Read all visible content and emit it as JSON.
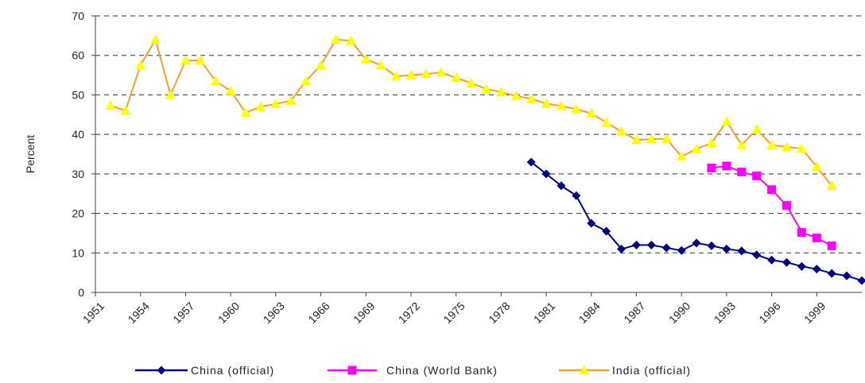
{
  "chart_data": {
    "type": "line",
    "title": "",
    "xlabel": "",
    "ylabel": "Percent",
    "ylim": [
      0,
      70
    ],
    "xlim": [
      1951,
      2002
    ],
    "y_ticks": [
      "0",
      "10",
      "20",
      "30",
      "40",
      "50",
      "60",
      "70"
    ],
    "x_ticks": [
      "1951",
      "1954",
      "1957",
      "1960",
      "1963",
      "1966",
      "1969",
      "1972",
      "1975",
      "1978",
      "1981",
      "1984",
      "1987",
      "1990",
      "1993",
      "1996",
      "1999"
    ],
    "grid": "horizontal-dashed",
    "legend_position": "bottom",
    "series": [
      {
        "name": "China (official)",
        "color": "#000080",
        "marker": "diamond",
        "points": [
          [
            1980,
            33
          ],
          [
            1981,
            30
          ],
          [
            1982,
            27
          ],
          [
            1983,
            24.5
          ],
          [
            1984,
            17.5
          ],
          [
            1985,
            15.5
          ],
          [
            1986,
            11
          ],
          [
            1987,
            12
          ],
          [
            1988,
            12
          ],
          [
            1989,
            11.3
          ],
          [
            1990,
            10.6
          ],
          [
            1991,
            12.5
          ],
          [
            1992,
            11.8
          ],
          [
            1993,
            11
          ],
          [
            1994,
            10.5
          ],
          [
            1995,
            9.5
          ],
          [
            1996,
            8.2
          ],
          [
            1997,
            7.6
          ],
          [
            1998,
            6.6
          ],
          [
            1999,
            5.9
          ],
          [
            2000,
            4.8
          ],
          [
            2001,
            4.2
          ],
          [
            2002,
            3
          ]
        ]
      },
      {
        "name": "China (World Bank)",
        "color": "#FF00FF",
        "marker": "square",
        "points": [
          [
            1992,
            31.5
          ],
          [
            1993,
            32
          ],
          [
            1994,
            30.5
          ],
          [
            1995,
            29.5
          ],
          [
            1996,
            26
          ],
          [
            1997,
            22
          ],
          [
            1998,
            15.2
          ],
          [
            1999,
            13.8
          ],
          [
            2000,
            11.8
          ]
        ]
      },
      {
        "name": "India (official)",
        "color": "#F0A030",
        "marker": "triangle",
        "marker_color": "#FFFF00",
        "points": [
          [
            1952,
            47.3
          ],
          [
            1953,
            46
          ],
          [
            1954,
            57.5
          ],
          [
            1955,
            64
          ],
          [
            1956,
            50
          ],
          [
            1957,
            58.7
          ],
          [
            1958,
            58.7
          ],
          [
            1959,
            53.5
          ],
          [
            1960,
            51
          ],
          [
            1961,
            45.5
          ],
          [
            1962,
            47
          ],
          [
            1963,
            47.7
          ],
          [
            1964,
            48.5
          ],
          [
            1965,
            53.5
          ],
          [
            1966,
            57.5
          ],
          [
            1967,
            64
          ],
          [
            1968,
            63.7
          ],
          [
            1969,
            59
          ],
          [
            1970,
            57.5
          ],
          [
            1971,
            54.7
          ],
          [
            1972,
            55
          ],
          [
            1973,
            55.3
          ],
          [
            1974,
            55.7
          ],
          [
            1975,
            54.3
          ],
          [
            1976,
            53
          ],
          [
            1977,
            51.5
          ],
          [
            1978,
            50.7
          ],
          [
            1979,
            49.7
          ],
          [
            1980,
            49
          ],
          [
            1981,
            47.8
          ],
          [
            1982,
            47.2
          ],
          [
            1983,
            46.4
          ],
          [
            1984,
            45.3
          ],
          [
            1985,
            43
          ],
          [
            1986,
            40.7
          ],
          [
            1987,
            38.6
          ],
          [
            1988,
            38.8
          ],
          [
            1989,
            38.9
          ],
          [
            1990,
            34.4
          ],
          [
            1991,
            36.3
          ],
          [
            1992,
            37.8
          ],
          [
            1993,
            43.3
          ],
          [
            1994,
            37.3
          ],
          [
            1995,
            41.3
          ],
          [
            1996,
            37.3
          ],
          [
            1997,
            36.8
          ],
          [
            1998,
            36.4
          ],
          [
            1999,
            31.8
          ],
          [
            2000,
            27
          ]
        ]
      }
    ]
  }
}
